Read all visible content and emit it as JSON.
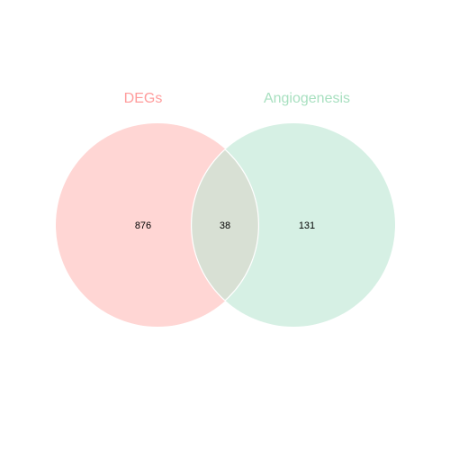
{
  "venn": {
    "sets": [
      {
        "name": "DEGs",
        "color": "#ff9c9c",
        "fill": "#ffd6d4"
      },
      {
        "name": "Angiogenesis",
        "color": "#a8e0c0",
        "fill": "#d6f0e4"
      }
    ],
    "regions": {
      "only_a": "876",
      "intersection": "38",
      "only_b": "131"
    },
    "intersection_fill": "#d8e0d4"
  }
}
